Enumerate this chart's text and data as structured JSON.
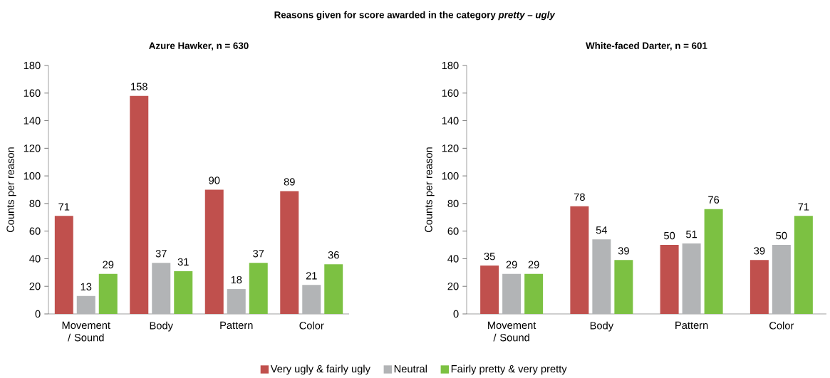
{
  "chart_data": [
    {
      "type": "bar",
      "title": "Azure Hawker, n = 630",
      "annotations": [
        "Reasons given for score awarded in the category *pretty – ugly*"
      ],
      "ylabel": "Counts per reason",
      "categories": [
        "Movement / Sound",
        "Body",
        "Pattern",
        "Color"
      ],
      "ylim": [
        0,
        180
      ],
      "yticks": [
        0,
        20,
        40,
        60,
        80,
        100,
        120,
        140,
        160,
        180
      ],
      "grid": false,
      "legend": "bottom",
      "data_labels": true,
      "series": [
        {
          "name": "Very ugly & fairly ugly",
          "color": "#c0504d",
          "values": [
            71,
            158,
            90,
            89
          ]
        },
        {
          "name": "Neutral",
          "color": "#b2b4b6",
          "values": [
            13,
            37,
            18,
            21
          ]
        },
        {
          "name": "Fairly pretty & very pretty",
          "color": "#7cc142",
          "values": [
            29,
            31,
            37,
            36
          ]
        }
      ]
    },
    {
      "type": "bar",
      "title": "White-faced Darter, n = 601",
      "ylabel": "Counts per reason",
      "categories": [
        "Movement / Sound",
        "Body",
        "Pattern",
        "Color"
      ],
      "ylim": [
        0,
        180
      ],
      "yticks": [
        0,
        20,
        40,
        60,
        80,
        100,
        120,
        140,
        160,
        180
      ],
      "grid": false,
      "legend": false,
      "data_labels": true,
      "series": [
        {
          "color": "#c0504d",
          "values": [
            35,
            78,
            50,
            39
          ]
        },
        {
          "color": "#b2b4b6",
          "values": [
            29,
            54,
            51,
            50
          ]
        },
        {
          "color": "#7cc142",
          "values": [
            29,
            39,
            76,
            71
          ]
        }
      ]
    }
  ]
}
